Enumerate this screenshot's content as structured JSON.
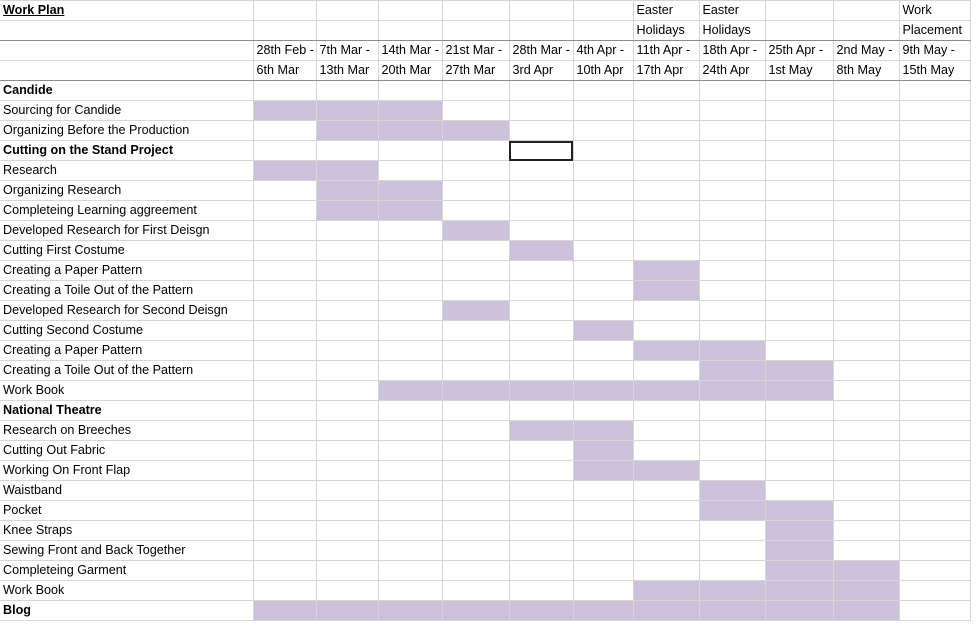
{
  "sheet": {
    "title": "Work Plan",
    "header_top": [
      "",
      "",
      "",
      "",
      "",
      "Easter",
      "Easter",
      "",
      "",
      "Work"
    ],
    "header_mid": [
      "",
      "",
      "",
      "",
      "",
      "Holidays",
      "Holidays",
      "",
      "",
      "Placement"
    ],
    "weeks_start": [
      "28th Feb -",
      "7th Mar -",
      "14th Mar -",
      "21st Mar -",
      "28th Mar -",
      "4th Apr -",
      "11th Apr -",
      "18th Apr -",
      "25th Apr -",
      "2nd May -",
      "9th May -"
    ],
    "weeks_end": [
      "6th Mar",
      "13th Mar",
      "20th Mar",
      "27th Mar",
      "3rd Apr",
      "10th Apr",
      "17th Apr",
      "24th Apr",
      "1st May",
      "8th May",
      "15th May"
    ],
    "rows": [
      {
        "label": "Candide",
        "bold": true,
        "shaded": []
      },
      {
        "label": "Sourcing for Candide",
        "bold": false,
        "shaded": [
          0,
          1,
          2
        ]
      },
      {
        "label": "Organizing Before the Production",
        "bold": false,
        "shaded": [
          1,
          2,
          3
        ]
      },
      {
        "label": "Cutting on the Stand Project",
        "bold": true,
        "shaded": []
      },
      {
        "label": "Research",
        "bold": false,
        "shaded": [
          0,
          1
        ]
      },
      {
        "label": "Organizing Research",
        "bold": false,
        "shaded": [
          1,
          2
        ]
      },
      {
        "label": "Completeing Learning aggreement",
        "bold": false,
        "shaded": [
          1,
          2
        ]
      },
      {
        "label": "Developed Research for First Deisgn",
        "bold": false,
        "shaded": [
          3
        ]
      },
      {
        "label": "Cutting First Costume",
        "bold": false,
        "shaded": [
          4
        ]
      },
      {
        "label": "Creating a Paper Pattern",
        "bold": false,
        "shaded": [
          6
        ]
      },
      {
        "label": "Creating a Toile Out of the Pattern",
        "bold": false,
        "shaded": [
          6
        ]
      },
      {
        "label": "Developed Research for Second Deisgn",
        "bold": false,
        "shaded": [
          3
        ]
      },
      {
        "label": "Cutting Second Costume",
        "bold": false,
        "shaded": [
          5
        ]
      },
      {
        "label": "Creating a Paper Pattern",
        "bold": false,
        "shaded": [
          6,
          7
        ]
      },
      {
        "label": "Creating a Toile Out of the Pattern",
        "bold": false,
        "shaded": [
          7,
          8
        ]
      },
      {
        "label": "Work Book",
        "bold": false,
        "shaded": [
          2,
          3,
          4,
          5,
          6,
          7,
          8
        ]
      },
      {
        "label": "National Theatre",
        "bold": true,
        "shaded": []
      },
      {
        "label": "Research on Breeches",
        "bold": false,
        "shaded": [
          4,
          5
        ]
      },
      {
        "label": "Cutting Out Fabric",
        "bold": false,
        "shaded": [
          5
        ]
      },
      {
        "label": "Working On Front Flap",
        "bold": false,
        "shaded": [
          5,
          6
        ]
      },
      {
        "label": "Waistband",
        "bold": false,
        "shaded": [
          7
        ]
      },
      {
        "label": "Pocket",
        "bold": false,
        "shaded": [
          7,
          8
        ]
      },
      {
        "label": "Knee Straps",
        "bold": false,
        "shaded": [
          8
        ]
      },
      {
        "label": "Sewing Front and Back Together",
        "bold": false,
        "shaded": [
          8
        ]
      },
      {
        "label": "Completeing Garment",
        "bold": false,
        "shaded": [
          8,
          9
        ]
      },
      {
        "label": "Work Book",
        "bold": false,
        "shaded": [
          6,
          7,
          8,
          9
        ]
      },
      {
        "label": "Blog",
        "bold": true,
        "shaded": [
          0,
          1,
          2,
          3,
          4,
          5,
          6,
          7,
          8,
          9
        ]
      }
    ],
    "selected_cell": {
      "row": 3,
      "col": 4
    }
  },
  "colors": {
    "shade": "#ccc0da",
    "gridline": "#d6d6d6",
    "border": "#8c8c8c"
  }
}
